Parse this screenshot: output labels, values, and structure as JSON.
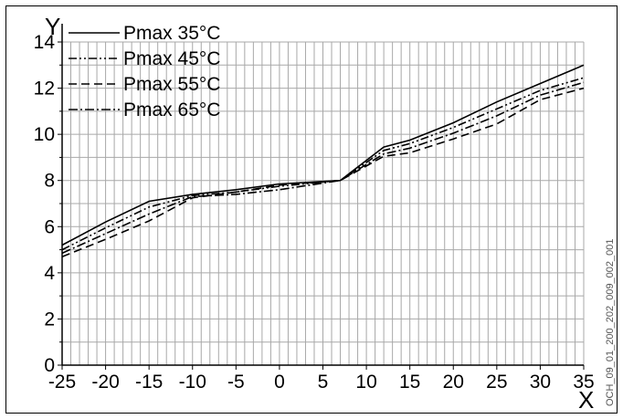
{
  "chart_data": {
    "type": "line",
    "ylabel": "Y",
    "xlabel": "X",
    "xlim": [
      -25,
      35
    ],
    "ylim": [
      0,
      14
    ],
    "x_ticks": [
      -25,
      -20,
      -15,
      -10,
      -5,
      0,
      5,
      10,
      15,
      20,
      25,
      30,
      35
    ],
    "y_ticks": [
      0,
      2,
      4,
      6,
      8,
      10,
      12,
      14
    ],
    "grid": true,
    "legend_position": "top-left",
    "series": [
      {
        "name": "Pmax 35°C",
        "dash": "solid",
        "x": [
          -25,
          -20,
          -15,
          -10,
          -5,
          0,
          7,
          12,
          15,
          20,
          25,
          30,
          35
        ],
        "y": [
          5.2,
          6.2,
          7.1,
          7.4,
          7.6,
          7.85,
          8.0,
          9.45,
          9.75,
          10.5,
          11.4,
          12.2,
          13.0
        ]
      },
      {
        "name": "Pmax 45°C",
        "dash": "dash-dot-dot",
        "x": [
          -25,
          -20,
          -15,
          -10,
          -5,
          0,
          7,
          12,
          15,
          20,
          25,
          30,
          35
        ],
        "y": [
          5.0,
          5.95,
          6.85,
          7.35,
          7.5,
          7.75,
          8.0,
          9.3,
          9.6,
          10.3,
          11.1,
          11.9,
          12.45
        ]
      },
      {
        "name": "Pmax 55°C",
        "dash": "dashed",
        "x": [
          -25,
          -20,
          -15,
          -10,
          -5,
          0,
          7,
          12,
          15,
          20,
          25,
          30,
          35
        ],
        "y": [
          4.7,
          5.45,
          6.25,
          7.25,
          7.5,
          7.8,
          8.0,
          9.05,
          9.2,
          9.8,
          10.45,
          11.5,
          12.0
        ]
      },
      {
        "name": "Pmax 65°C",
        "dash": "dash-dot",
        "x": [
          -25,
          -20,
          -15,
          -10,
          -5,
          0,
          7,
          12,
          15,
          20,
          25,
          30,
          35
        ],
        "y": [
          4.85,
          5.7,
          6.55,
          7.3,
          7.4,
          7.6,
          8.0,
          9.15,
          9.4,
          10.05,
          10.8,
          11.7,
          12.25
        ]
      }
    ]
  },
  "side_code": "OCH_09_01_200_202_009_002_001"
}
